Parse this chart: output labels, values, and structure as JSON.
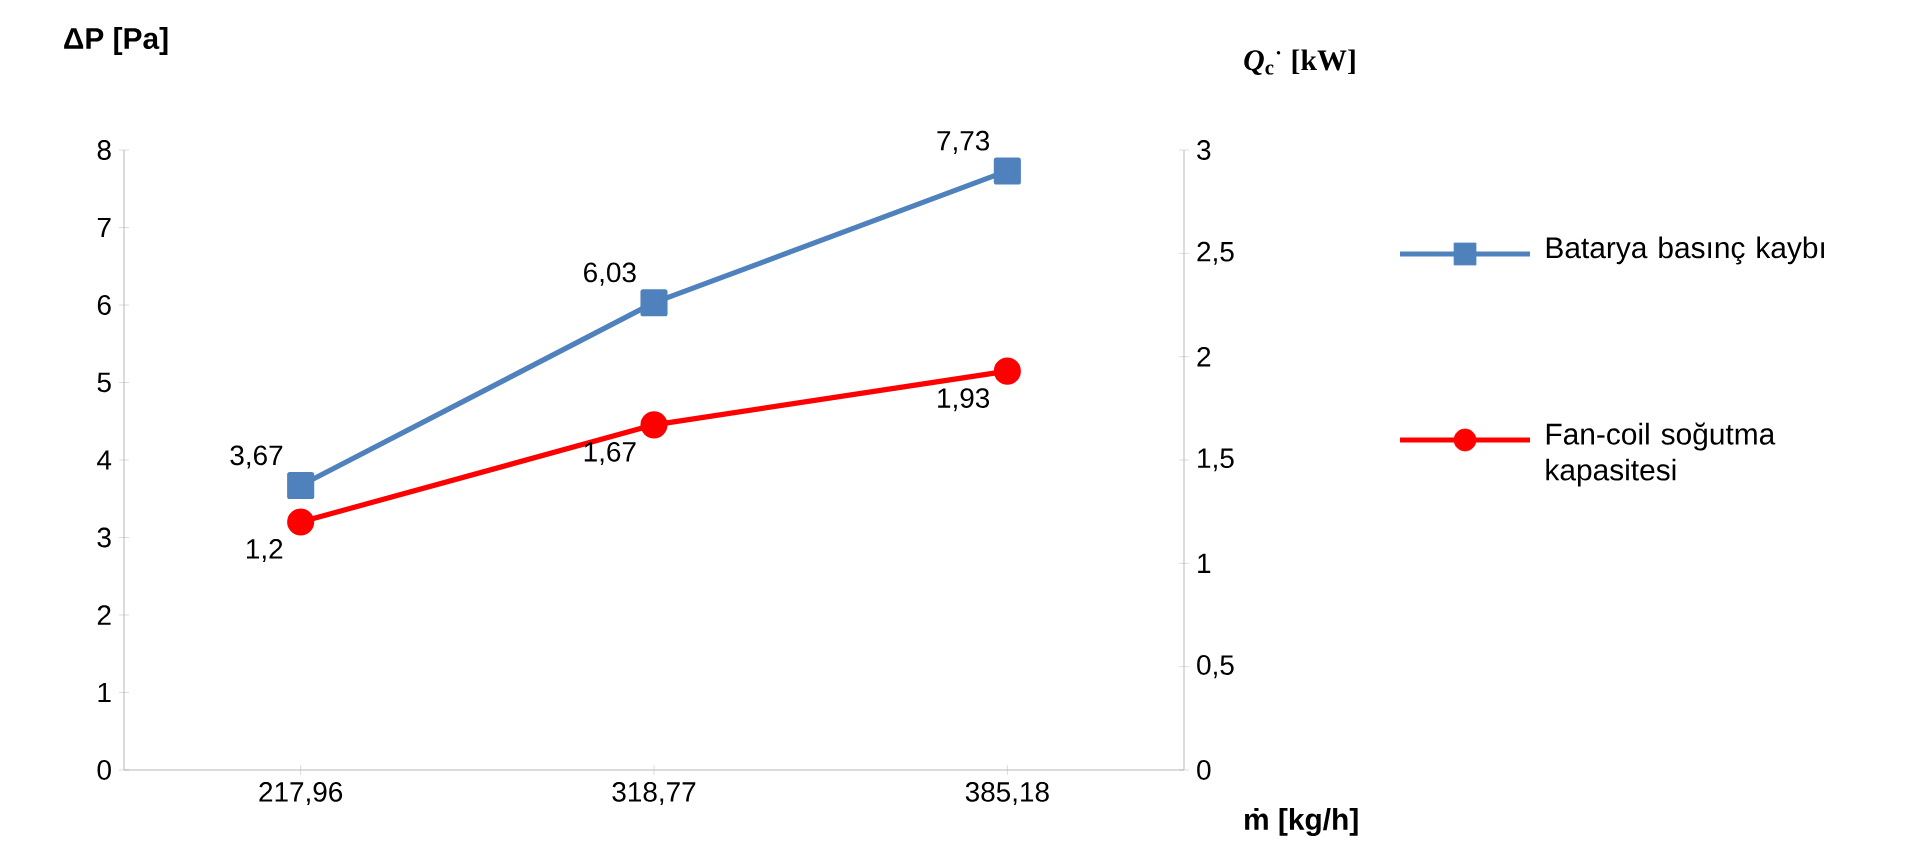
{
  "chart_data": {
    "type": "line",
    "ylabel": "ΔP [Pa]",
    "y2label": "*Q*$_{c}$$^{·}$ [kW]",
    "xlabel": "ṁ [kg/h]",
    "categories": [
      "217,96",
      "318,77",
      "385,18"
    ],
    "ylim": [
      0,
      8
    ],
    "yticks": [
      0,
      1,
      2,
      3,
      4,
      5,
      6,
      7,
      8
    ],
    "y2lim": [
      0,
      3
    ],
    "y2ticks": [
      0,
      {
        "value": 0.5,
        "label": "0,5"
      },
      1,
      {
        "value": 1.5,
        "label": "1,5"
      },
      2,
      {
        "value": 2.5,
        "label": "2,5"
      },
      3
    ],
    "legend": "right",
    "grid": false,
    "series": [
      {
        "name": "Batarya basınç kaybı",
        "color": "#4f81bd",
        "marker": "square",
        "axis": "y",
        "values": [
          3.67,
          6.03,
          7.73
        ],
        "value_labels": [
          "3,67",
          "6,03",
          "7,73"
        ]
      },
      {
        "name": "Fan-coil soğutma kapasitesi",
        "color": "#ff0000",
        "marker": "circle",
        "axis": "y2",
        "values": [
          1.2,
          1.67,
          1.93
        ],
        "value_labels": [
          "1,2",
          "1,67",
          "1,93"
        ]
      }
    ]
  }
}
